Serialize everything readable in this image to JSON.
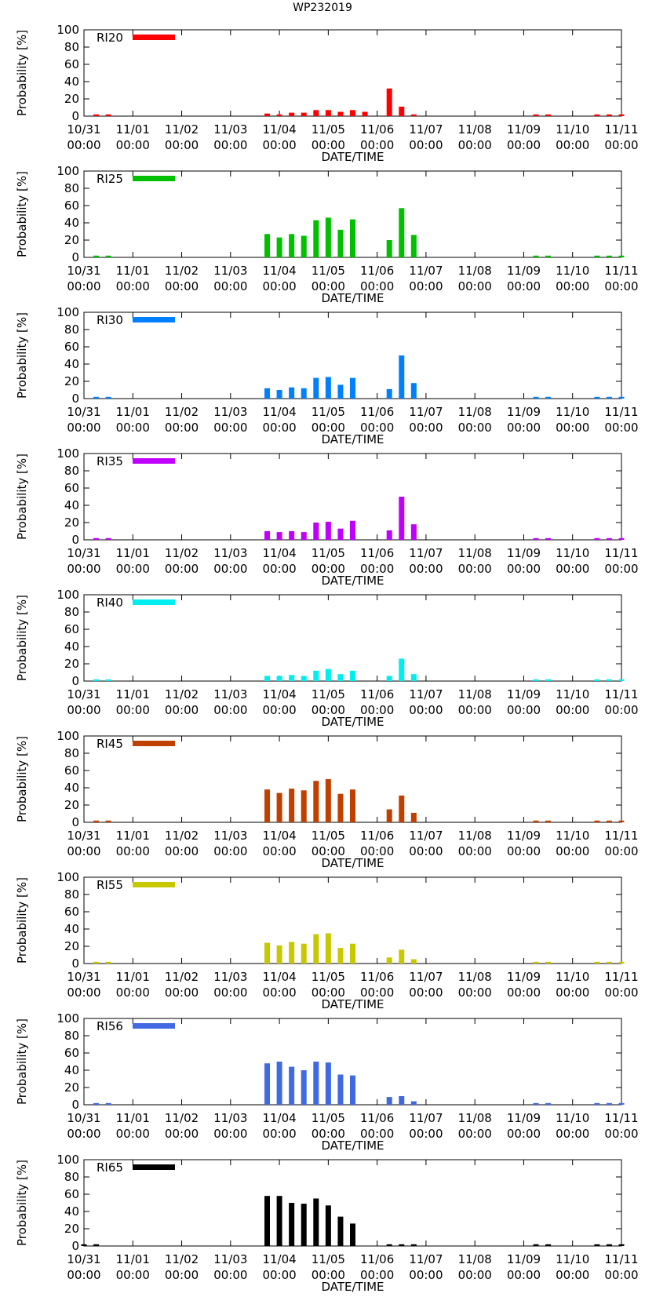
{
  "title": "WP232019",
  "chart_data": [
    {
      "type": "bar",
      "title": "WP232019",
      "legend": "RI20",
      "color": "#ff0000",
      "xlabel": "DATE/TIME",
      "ylabel": "Probability [%]",
      "ylim": [
        0,
        100
      ],
      "yticks": [
        0,
        20,
        40,
        60,
        80,
        100
      ],
      "xtick_labels": [
        [
          "10/31",
          "00:00"
        ],
        [
          "11/01",
          "00:00"
        ],
        [
          "11/02",
          "00:00"
        ],
        [
          "11/03",
          "00:00"
        ],
        [
          "11/04",
          "00:00"
        ],
        [
          "11/05",
          "00:00"
        ],
        [
          "11/06",
          "00:00"
        ],
        [
          "11/07",
          "00:00"
        ],
        [
          "11/08",
          "00:00"
        ],
        [
          "11/09",
          "00:00"
        ],
        [
          "11/10",
          "00:00"
        ],
        [
          "11/11",
          "00:00"
        ]
      ],
      "x_hours": [
        6,
        12,
        90,
        96,
        102,
        108,
        114,
        120,
        126,
        132,
        138,
        150,
        156,
        162,
        222,
        228,
        252,
        258,
        264
      ],
      "values": [
        2,
        2,
        3,
        2,
        4,
        4,
        7,
        7,
        5,
        7,
        5,
        32,
        11,
        2,
        2,
        2,
        2,
        2,
        2
      ]
    },
    {
      "type": "bar",
      "title": "WP232019",
      "legend": "RI25",
      "color": "#00c000",
      "xlabel": "DATE/TIME",
      "ylabel": "Probability [%]",
      "ylim": [
        0,
        100
      ],
      "yticks": [
        0,
        20,
        40,
        60,
        80,
        100
      ],
      "xtick_labels": [
        [
          "10/31",
          "00:00"
        ],
        [
          "11/01",
          "00:00"
        ],
        [
          "11/02",
          "00:00"
        ],
        [
          "11/03",
          "00:00"
        ],
        [
          "11/04",
          "00:00"
        ],
        [
          "11/05",
          "00:00"
        ],
        [
          "11/06",
          "00:00"
        ],
        [
          "11/07",
          "00:00"
        ],
        [
          "11/08",
          "00:00"
        ],
        [
          "11/09",
          "00:00"
        ],
        [
          "11/10",
          "00:00"
        ],
        [
          "11/11",
          "00:00"
        ]
      ],
      "x_hours": [
        6,
        12,
        90,
        96,
        102,
        108,
        114,
        120,
        126,
        132,
        150,
        156,
        162,
        222,
        228,
        252,
        258,
        264
      ],
      "values": [
        2,
        2,
        27,
        23,
        27,
        25,
        43,
        46,
        32,
        44,
        20,
        57,
        26,
        2,
        2,
        2,
        2,
        2
      ]
    },
    {
      "type": "bar",
      "title": "WP232019",
      "legend": "RI30",
      "color": "#0080ff",
      "xlabel": "DATE/TIME",
      "ylabel": "Probability [%]",
      "ylim": [
        0,
        100
      ],
      "yticks": [
        0,
        20,
        40,
        60,
        80,
        100
      ],
      "xtick_labels": [
        [
          "10/31",
          "00:00"
        ],
        [
          "11/01",
          "00:00"
        ],
        [
          "11/02",
          "00:00"
        ],
        [
          "11/03",
          "00:00"
        ],
        [
          "11/04",
          "00:00"
        ],
        [
          "11/05",
          "00:00"
        ],
        [
          "11/06",
          "00:00"
        ],
        [
          "11/07",
          "00:00"
        ],
        [
          "11/08",
          "00:00"
        ],
        [
          "11/09",
          "00:00"
        ],
        [
          "11/10",
          "00:00"
        ],
        [
          "11/11",
          "00:00"
        ]
      ],
      "x_hours": [
        6,
        12,
        90,
        96,
        102,
        108,
        114,
        120,
        126,
        132,
        150,
        156,
        162,
        222,
        228,
        252,
        258,
        264
      ],
      "values": [
        2,
        2,
        12,
        10,
        13,
        12,
        24,
        25,
        16,
        24,
        11,
        50,
        18,
        2,
        2,
        2,
        2,
        2
      ]
    },
    {
      "type": "bar",
      "title": "WP232019",
      "legend": "RI35",
      "color": "#c000ff",
      "xlabel": "DATE/TIME",
      "ylabel": "Probability [%]",
      "ylim": [
        0,
        100
      ],
      "yticks": [
        0,
        20,
        40,
        60,
        80,
        100
      ],
      "xtick_labels": [
        [
          "10/31",
          "00:00"
        ],
        [
          "11/01",
          "00:00"
        ],
        [
          "11/02",
          "00:00"
        ],
        [
          "11/03",
          "00:00"
        ],
        [
          "11/04",
          "00:00"
        ],
        [
          "11/05",
          "00:00"
        ],
        [
          "11/06",
          "00:00"
        ],
        [
          "11/07",
          "00:00"
        ],
        [
          "11/08",
          "00:00"
        ],
        [
          "11/09",
          "00:00"
        ],
        [
          "11/10",
          "00:00"
        ],
        [
          "11/11",
          "00:00"
        ]
      ],
      "x_hours": [
        6,
        12,
        90,
        96,
        102,
        108,
        114,
        120,
        126,
        132,
        150,
        156,
        162,
        222,
        228,
        252,
        258,
        264
      ],
      "values": [
        2,
        2,
        10,
        9,
        10,
        9,
        20,
        21,
        13,
        22,
        11,
        50,
        18,
        2,
        2,
        2,
        2,
        2
      ]
    },
    {
      "type": "bar",
      "title": "WP232019",
      "legend": "RI40",
      "color": "#00eeee",
      "xlabel": "DATE/TIME",
      "ylabel": "Probability [%]",
      "ylim": [
        0,
        100
      ],
      "yticks": [
        0,
        20,
        40,
        60,
        80,
        100
      ],
      "xtick_labels": [
        [
          "10/31",
          "00:00"
        ],
        [
          "11/01",
          "00:00"
        ],
        [
          "11/02",
          "00:00"
        ],
        [
          "11/03",
          "00:00"
        ],
        [
          "11/04",
          "00:00"
        ],
        [
          "11/05",
          "00:00"
        ],
        [
          "11/06",
          "00:00"
        ],
        [
          "11/07",
          "00:00"
        ],
        [
          "11/08",
          "00:00"
        ],
        [
          "11/09",
          "00:00"
        ],
        [
          "11/10",
          "00:00"
        ],
        [
          "11/11",
          "00:00"
        ]
      ],
      "x_hours": [
        6,
        12,
        90,
        96,
        102,
        108,
        114,
        120,
        126,
        132,
        150,
        156,
        162,
        222,
        228,
        252,
        258,
        264
      ],
      "values": [
        2,
        2,
        6,
        6,
        7,
        6,
        12,
        14,
        8,
        12,
        6,
        26,
        8,
        2,
        2,
        2,
        2,
        2
      ]
    },
    {
      "type": "bar",
      "title": "WP232019",
      "legend": "RI45",
      "color": "#c04000",
      "xlabel": "DATE/TIME",
      "ylabel": "Probability [%]",
      "ylim": [
        0,
        100
      ],
      "yticks": [
        0,
        20,
        40,
        60,
        80,
        100
      ],
      "xtick_labels": [
        [
          "10/31",
          "00:00"
        ],
        [
          "11/01",
          "00:00"
        ],
        [
          "11/02",
          "00:00"
        ],
        [
          "11/03",
          "00:00"
        ],
        [
          "11/04",
          "00:00"
        ],
        [
          "11/05",
          "00:00"
        ],
        [
          "11/06",
          "00:00"
        ],
        [
          "11/07",
          "00:00"
        ],
        [
          "11/08",
          "00:00"
        ],
        [
          "11/09",
          "00:00"
        ],
        [
          "11/10",
          "00:00"
        ],
        [
          "11/11",
          "00:00"
        ]
      ],
      "x_hours": [
        6,
        12,
        90,
        96,
        102,
        108,
        114,
        120,
        126,
        132,
        150,
        156,
        162,
        222,
        228,
        252,
        258,
        264
      ],
      "values": [
        2,
        2,
        38,
        34,
        39,
        37,
        48,
        50,
        33,
        38,
        15,
        31,
        11,
        2,
        2,
        2,
        2,
        2
      ]
    },
    {
      "type": "bar",
      "title": "WP232019",
      "legend": "RI55",
      "color": "#c8c800",
      "xlabel": "DATE/TIME",
      "ylabel": "Probability [%]",
      "ylim": [
        0,
        100
      ],
      "yticks": [
        0,
        20,
        40,
        60,
        80,
        100
      ],
      "xtick_labels": [
        [
          "10/31",
          "00:00"
        ],
        [
          "11/01",
          "00:00"
        ],
        [
          "11/02",
          "00:00"
        ],
        [
          "11/03",
          "00:00"
        ],
        [
          "11/04",
          "00:00"
        ],
        [
          "11/05",
          "00:00"
        ],
        [
          "11/06",
          "00:00"
        ],
        [
          "11/07",
          "00:00"
        ],
        [
          "11/08",
          "00:00"
        ],
        [
          "11/09",
          "00:00"
        ],
        [
          "11/10",
          "00:00"
        ],
        [
          "11/11",
          "00:00"
        ]
      ],
      "x_hours": [
        6,
        12,
        90,
        96,
        102,
        108,
        114,
        120,
        126,
        132,
        150,
        156,
        162,
        222,
        228,
        252,
        258,
        264
      ],
      "values": [
        2,
        2,
        24,
        21,
        25,
        23,
        34,
        35,
        18,
        23,
        7,
        16,
        5,
        2,
        2,
        2,
        2,
        2
      ]
    },
    {
      "type": "bar",
      "title": "WP232019",
      "legend": "RI56",
      "color": "#4169e1",
      "xlabel": "DATE/TIME",
      "ylabel": "Probability [%]",
      "ylim": [
        0,
        100
      ],
      "yticks": [
        0,
        20,
        40,
        60,
        80,
        100
      ],
      "xtick_labels": [
        [
          "10/31",
          "00:00"
        ],
        [
          "11/01",
          "00:00"
        ],
        [
          "11/02",
          "00:00"
        ],
        [
          "11/03",
          "00:00"
        ],
        [
          "11/04",
          "00:00"
        ],
        [
          "11/05",
          "00:00"
        ],
        [
          "11/06",
          "00:00"
        ],
        [
          "11/07",
          "00:00"
        ],
        [
          "11/08",
          "00:00"
        ],
        [
          "11/09",
          "00:00"
        ],
        [
          "11/10",
          "00:00"
        ],
        [
          "11/11",
          "00:00"
        ]
      ],
      "x_hours": [
        6,
        12,
        90,
        96,
        102,
        108,
        114,
        120,
        126,
        132,
        150,
        156,
        162,
        222,
        228,
        252,
        258,
        264
      ],
      "values": [
        2,
        2,
        48,
        50,
        44,
        40,
        50,
        49,
        35,
        34,
        9,
        10,
        4,
        2,
        2,
        2,
        2,
        2
      ]
    },
    {
      "type": "bar",
      "title": "WP232019",
      "legend": "RI65",
      "color": "#000000",
      "xlabel": "DATE/TIME",
      "ylabel": "Probability [%]",
      "ylim": [
        0,
        100
      ],
      "yticks": [
        0,
        20,
        40,
        60,
        80,
        100
      ],
      "xtick_labels": [
        [
          "10/31",
          "00:00"
        ],
        [
          "11/01",
          "00:00"
        ],
        [
          "11/02",
          "00:00"
        ],
        [
          "11/03",
          "00:00"
        ],
        [
          "11/04",
          "00:00"
        ],
        [
          "11/05",
          "00:00"
        ],
        [
          "11/06",
          "00:00"
        ],
        [
          "11/07",
          "00:00"
        ],
        [
          "11/08",
          "00:00"
        ],
        [
          "11/09",
          "00:00"
        ],
        [
          "11/10",
          "00:00"
        ],
        [
          "11/11",
          "00:00"
        ]
      ],
      "x_hours": [
        0,
        6,
        90,
        96,
        102,
        108,
        114,
        120,
        126,
        132,
        150,
        156,
        162,
        222,
        228,
        252,
        258,
        264
      ],
      "values": [
        2,
        2,
        58,
        58,
        50,
        49,
        55,
        47,
        34,
        26,
        2,
        2,
        2,
        2,
        2,
        2,
        2,
        2
      ]
    }
  ]
}
